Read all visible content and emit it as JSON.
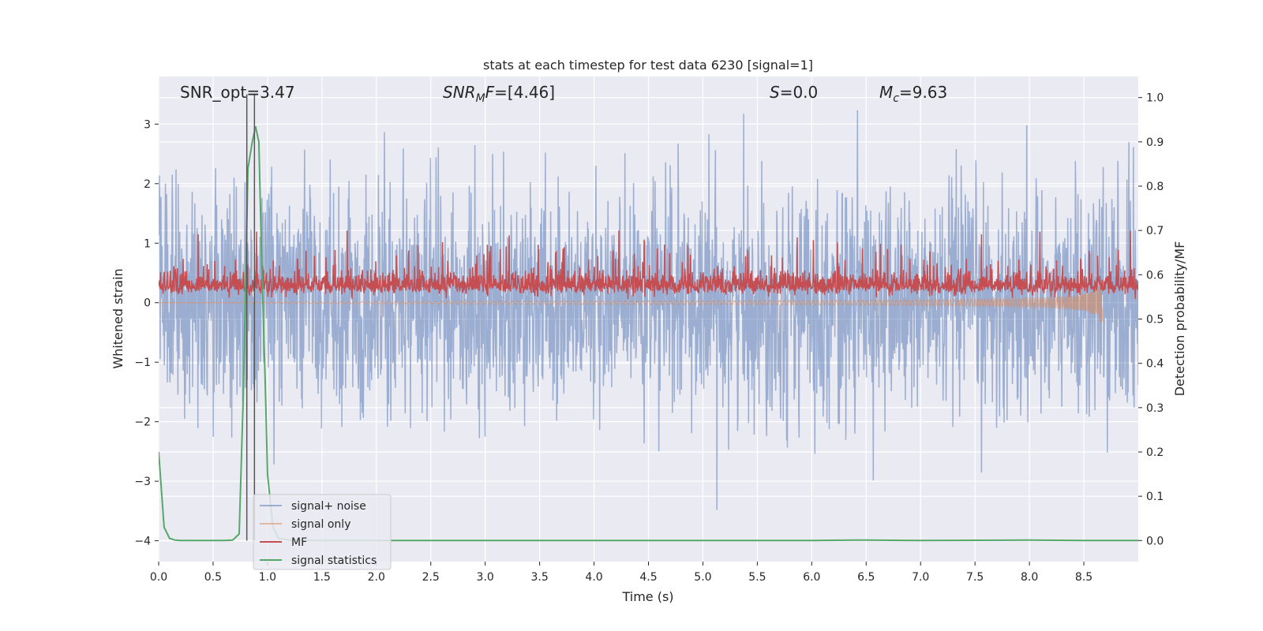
{
  "chart_data": {
    "type": "line",
    "title": "stats at each timestep for test data 6230 [signal=1]",
    "xlabel": "Time (s)",
    "ylabel": "Whitened strain",
    "y2label": "Detection probability/MF",
    "xlim": [
      0.0,
      9.0
    ],
    "ylim": [
      -4.35,
      3.8
    ],
    "y2lim": [
      -0.0475,
      1.0475
    ],
    "x_ticks": [
      "0.0",
      "0.5",
      "1.0",
      "1.5",
      "2.0",
      "2.5",
      "3.0",
      "3.5",
      "4.0",
      "4.5",
      "5.0",
      "5.5",
      "6.0",
      "6.5",
      "7.0",
      "7.5",
      "8.0",
      "8.5"
    ],
    "y_ticks": [
      "−4",
      "−3",
      "−2",
      "−1",
      "0",
      "1",
      "2",
      "3"
    ],
    "y2_ticks": [
      "0.0",
      "0.1",
      "0.2",
      "0.3",
      "0.4",
      "0.5",
      "0.6",
      "0.7",
      "0.8",
      "0.9",
      "1.0"
    ],
    "grid": true,
    "legend_position": "lower-left",
    "annotations": [
      {
        "id": "snr_opt",
        "text": "SNR_opt=3.47"
      },
      {
        "id": "snr_mf",
        "base": "SNR",
        "sub": "M",
        "suffix": "F=[4.46]"
      },
      {
        "id": "s",
        "base": "S",
        "suffix": "=0.0"
      },
      {
        "id": "mc",
        "base": "M",
        "sub": "c",
        "suffix": "=9.63"
      }
    ],
    "markers_x": [
      0.81,
      0.88
    ],
    "series": [
      {
        "name": "signal+ noise",
        "color": "#4c72b0",
        "alpha": 0.5,
        "kind": "noise",
        "amplitude_sigma": 0.95,
        "approx_range": [
          -4.0,
          3.4
        ]
      },
      {
        "name": "signal only",
        "color": "#dd8452",
        "alpha": 0.5,
        "kind": "chirp",
        "merger_x": 8.67,
        "amplitude_max": 0.45
      },
      {
        "name": "MF",
        "color": "#c44e52",
        "kind": "mf",
        "axis": "right",
        "baseline": 0.575,
        "approx_range": [
          0.545,
          0.7
        ]
      },
      {
        "name": "signal statistics",
        "color": "#55a868",
        "axis": "right",
        "x": [
          0.0,
          0.05,
          0.1,
          0.15,
          0.2,
          0.3,
          0.4,
          0.5,
          0.6,
          0.68,
          0.74,
          0.78,
          0.82,
          0.86,
          0.89,
          0.92,
          0.95,
          0.98,
          1.0,
          1.05,
          1.1,
          1.2,
          1.5,
          2.0,
          3.0,
          4.0,
          5.0,
          6.0,
          6.4,
          6.5,
          7.0,
          8.0,
          8.5,
          9.0
        ],
        "values": [
          0.2,
          0.03,
          0.005,
          0.001,
          0.0,
          0.0,
          0.0,
          0.0,
          0.0,
          0.001,
          0.015,
          0.35,
          0.84,
          0.9,
          0.935,
          0.9,
          0.6,
          0.35,
          0.15,
          0.03,
          0.005,
          0.001,
          0.0,
          0.0,
          0.0,
          0.0,
          0.0,
          0.0,
          0.001,
          0.001,
          0.0,
          0.001,
          0.0,
          0.0
        ]
      }
    ]
  }
}
